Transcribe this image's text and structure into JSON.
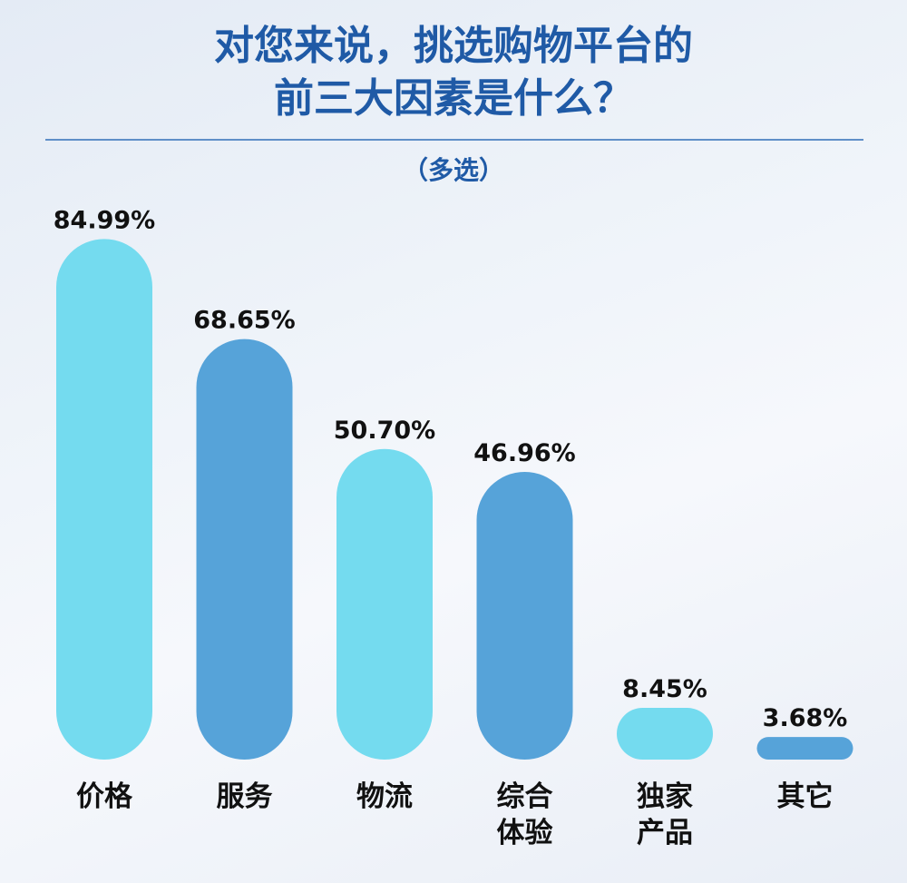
{
  "header": {
    "title_line1": "对您来说，挑选购物平台的",
    "title_line2": "前三大因素是什么？",
    "subtitle": "（多选）"
  },
  "colors": {
    "title": "#1f5aa6",
    "bar_light": "#74dbef",
    "bar_dark": "#56a3d9",
    "label_text": "#111111"
  },
  "chart_data": {
    "type": "bar",
    "title": "对您来说，挑选购物平台的前三大因素是什么？",
    "subtitle": "（多选）",
    "categories": [
      [
        "价格"
      ],
      [
        "服务"
      ],
      [
        "物流"
      ],
      [
        "综合",
        "体验"
      ],
      [
        "独家",
        "产品"
      ],
      [
        "其它"
      ]
    ],
    "values": [
      84.99,
      68.65,
      50.7,
      46.96,
      8.45,
      3.68
    ],
    "value_labels": [
      "84.99%",
      "68.65%",
      "50.70%",
      "46.96%",
      "8.45%",
      "3.68%"
    ],
    "unit": "%",
    "ylim": [
      0,
      100
    ],
    "grid": false,
    "legend": "none"
  }
}
